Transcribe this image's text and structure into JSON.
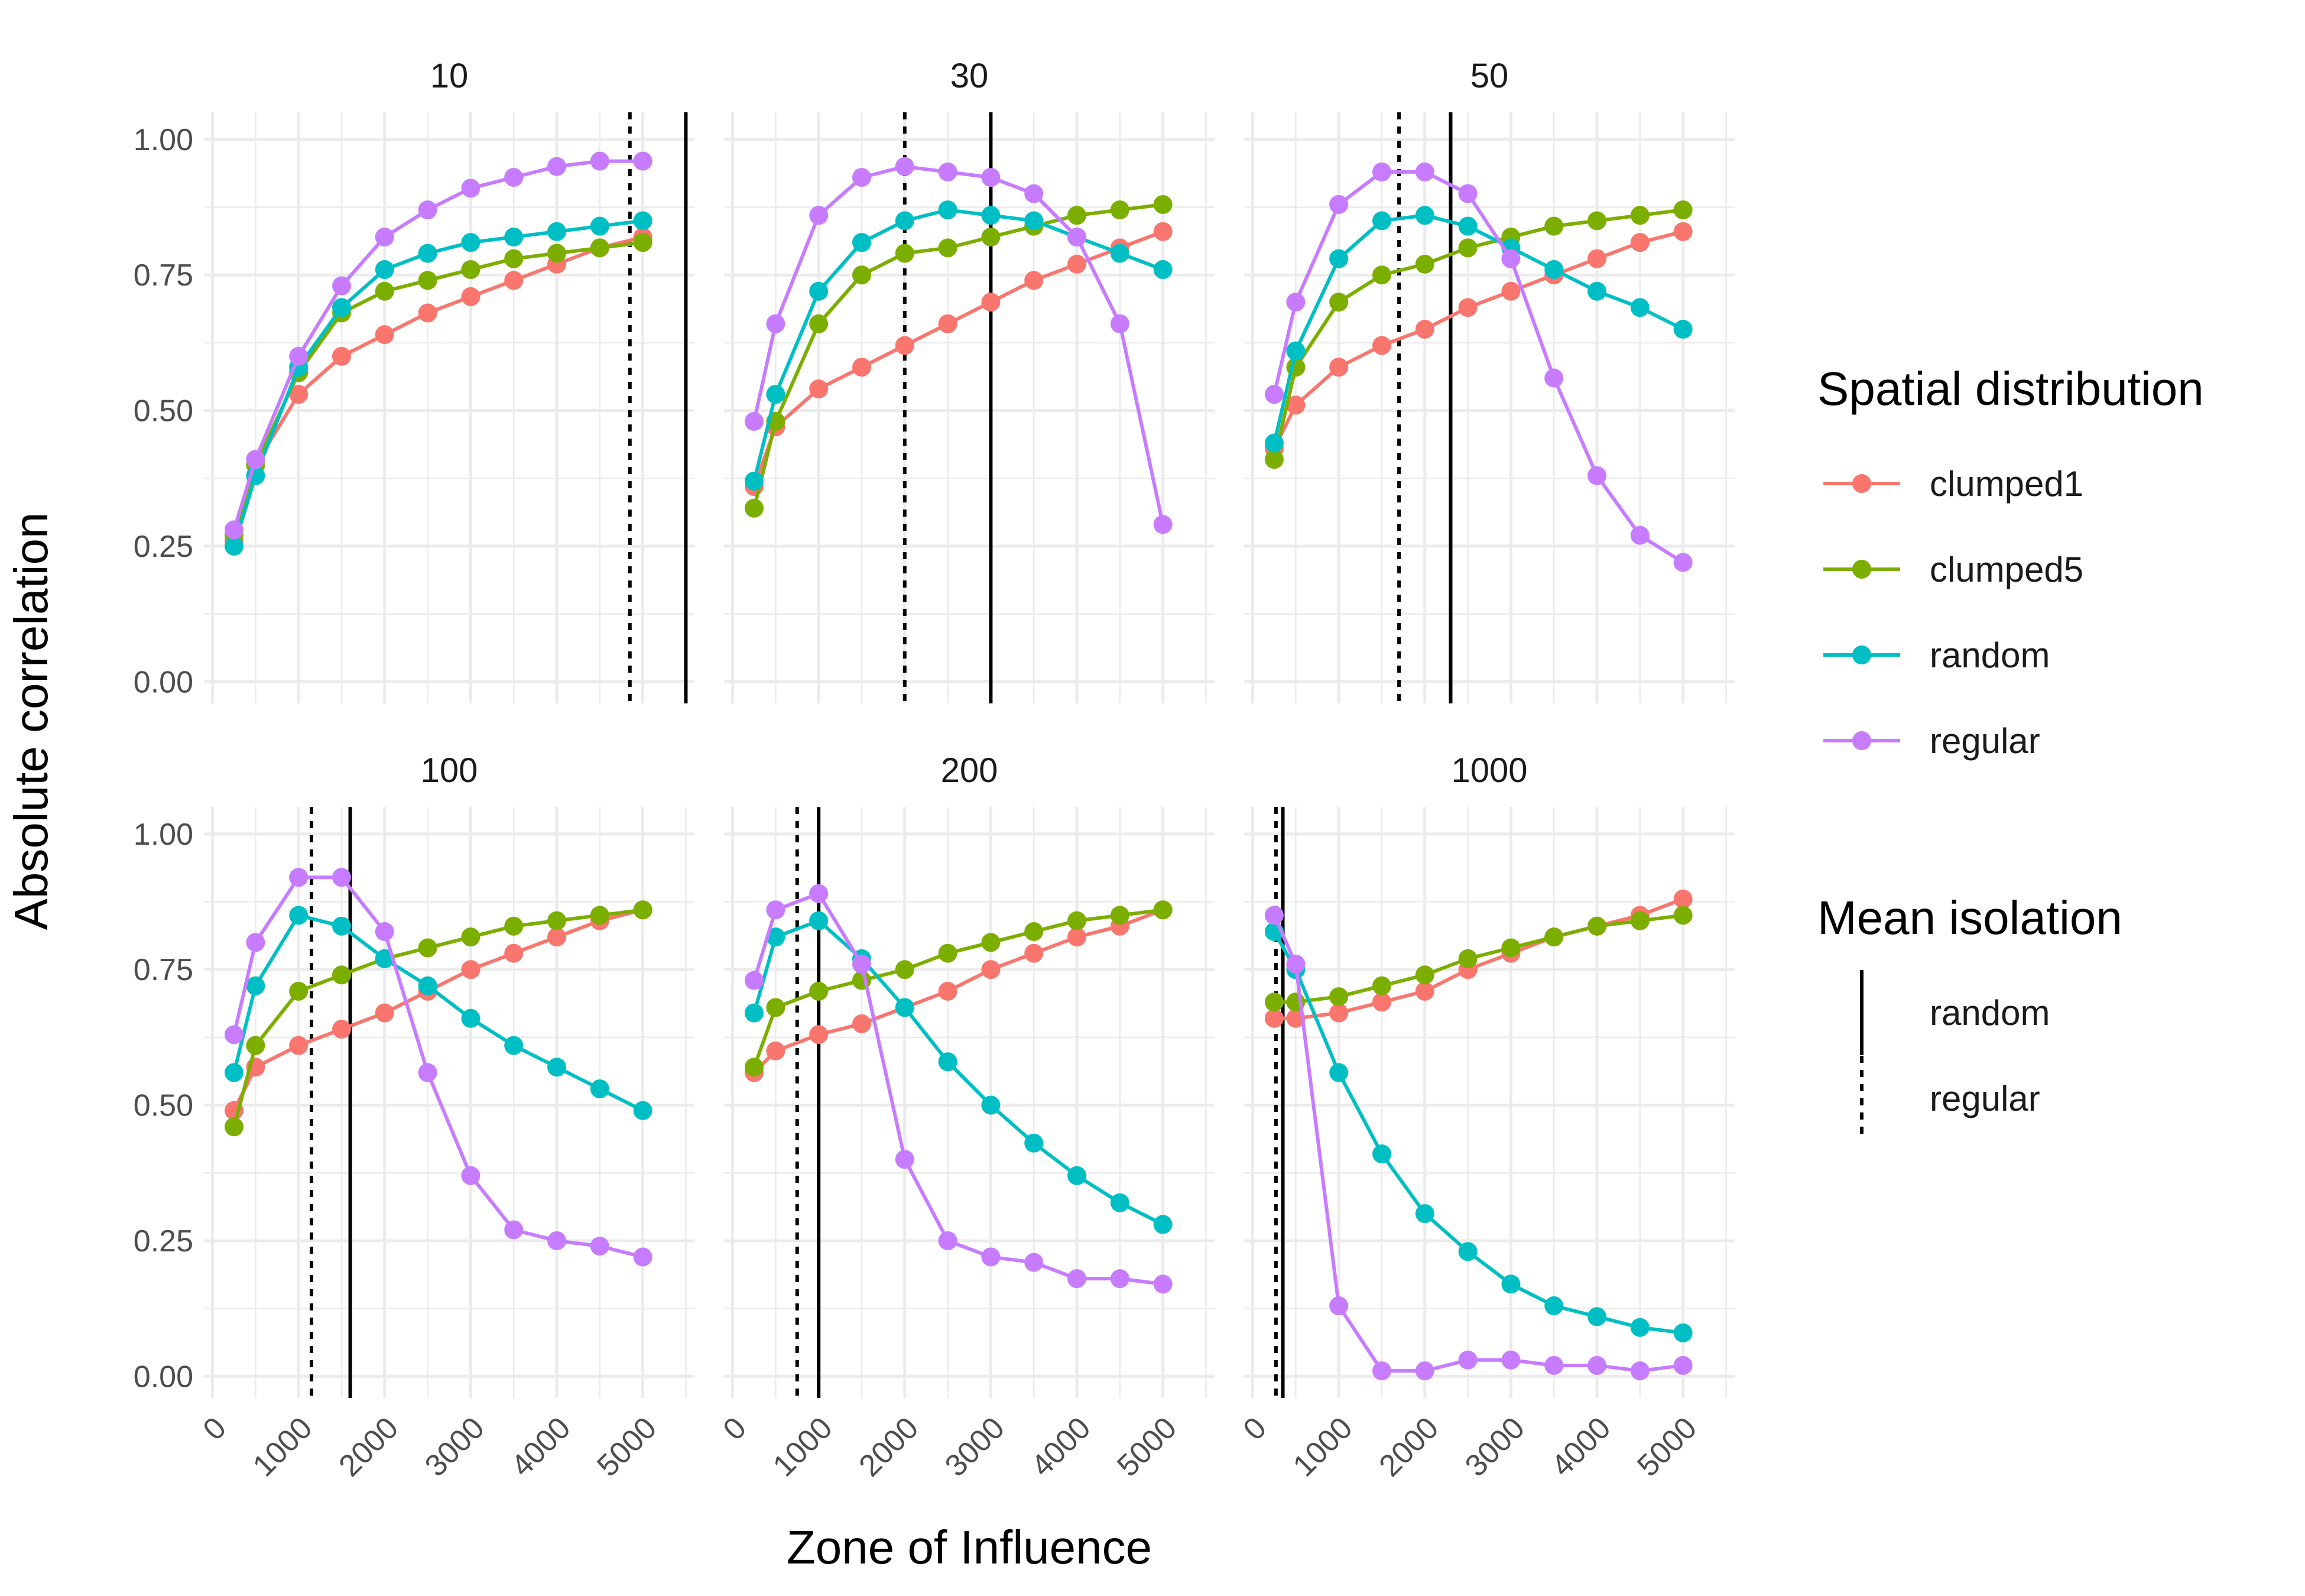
{
  "chart_data": {
    "type": "line",
    "facets": [
      "10",
      "30",
      "50",
      "100",
      "200",
      "1000"
    ],
    "x": [
      250,
      500,
      1000,
      1500,
      2000,
      2500,
      3000,
      3500,
      4000,
      4500,
      5000
    ],
    "xlabel": "Zone of Influence",
    "ylabel": "Absolute correlation",
    "xlim": [
      -100,
      5600
    ],
    "ylim": [
      -0.04,
      1.05
    ],
    "x_ticks": [
      0,
      1000,
      2000,
      3000,
      4000,
      5000
    ],
    "x_tick_labels": [
      "0",
      "1000",
      "2000",
      "3000",
      "4000",
      "5000"
    ],
    "y_ticks": [
      0,
      0.25,
      0.5,
      0.75,
      1.0
    ],
    "y_tick_labels": [
      "0.00",
      "0.25",
      "0.50",
      "0.75",
      "1.00"
    ],
    "grid": true,
    "legend_position": "right",
    "color_legend_title": "Spatial distribution",
    "linetype_legend_title": "Mean isolation",
    "colors": {
      "clumped1": "#F8766D",
      "clumped5": "#7CAE00",
      "random": "#00BFC4",
      "regular": "#C77CFF",
      "isolation_line": "#000000",
      "grid": "#EBEBEB"
    },
    "series_names": [
      "clumped1",
      "clumped5",
      "random",
      "regular"
    ],
    "linetypes": [
      {
        "name": "random",
        "dash": "solid"
      },
      {
        "name": "regular",
        "dash": "dotted"
      }
    ],
    "panels": [
      {
        "label": "10",
        "isolation": {
          "random": 5500,
          "regular": 4850
        },
        "series": {
          "clumped1": [
            0.26,
            0.4,
            0.53,
            0.6,
            0.64,
            0.68,
            0.71,
            0.74,
            0.77,
            0.8,
            0.82
          ],
          "clumped5": [
            0.27,
            0.4,
            0.57,
            0.68,
            0.72,
            0.74,
            0.76,
            0.78,
            0.79,
            0.8,
            0.81
          ],
          "random": [
            0.25,
            0.38,
            0.58,
            0.69,
            0.76,
            0.79,
            0.81,
            0.82,
            0.83,
            0.84,
            0.85
          ],
          "regular": [
            0.28,
            0.41,
            0.6,
            0.73,
            0.82,
            0.87,
            0.91,
            0.93,
            0.95,
            0.96,
            0.96
          ]
        }
      },
      {
        "label": "30",
        "isolation": {
          "random": 3000,
          "regular": 2000
        },
        "series": {
          "clumped1": [
            0.36,
            0.47,
            0.54,
            0.58,
            0.62,
            0.66,
            0.7,
            0.74,
            0.77,
            0.8,
            0.83
          ],
          "clumped5": [
            0.32,
            0.48,
            0.66,
            0.75,
            0.79,
            0.8,
            0.82,
            0.84,
            0.86,
            0.87,
            0.88
          ],
          "random": [
            0.37,
            0.53,
            0.72,
            0.81,
            0.85,
            0.87,
            0.86,
            0.85,
            0.82,
            0.79,
            0.76
          ],
          "regular": [
            0.48,
            0.66,
            0.86,
            0.93,
            0.95,
            0.94,
            0.93,
            0.9,
            0.82,
            0.66,
            0.29
          ]
        }
      },
      {
        "label": "50",
        "isolation": {
          "random": 2300,
          "regular": 1700
        },
        "series": {
          "clumped1": [
            0.43,
            0.51,
            0.58,
            0.62,
            0.65,
            0.69,
            0.72,
            0.75,
            0.78,
            0.81,
            0.83
          ],
          "clumped5": [
            0.41,
            0.58,
            0.7,
            0.75,
            0.77,
            0.8,
            0.82,
            0.84,
            0.85,
            0.86,
            0.87
          ],
          "random": [
            0.44,
            0.61,
            0.78,
            0.85,
            0.86,
            0.84,
            0.8,
            0.76,
            0.72,
            0.69,
            0.65
          ],
          "regular": [
            0.53,
            0.7,
            0.88,
            0.94,
            0.94,
            0.9,
            0.78,
            0.56,
            0.38,
            0.27,
            0.22
          ]
        }
      },
      {
        "label": "100",
        "isolation": {
          "random": 1600,
          "regular": 1150
        },
        "series": {
          "clumped1": [
            0.49,
            0.57,
            0.61,
            0.64,
            0.67,
            0.71,
            0.75,
            0.78,
            0.81,
            0.84,
            0.86
          ],
          "clumped5": [
            0.46,
            0.61,
            0.71,
            0.74,
            0.77,
            0.79,
            0.81,
            0.83,
            0.84,
            0.85,
            0.86
          ],
          "random": [
            0.56,
            0.72,
            0.85,
            0.83,
            0.77,
            0.72,
            0.66,
            0.61,
            0.57,
            0.53,
            0.49
          ],
          "regular": [
            0.63,
            0.8,
            0.92,
            0.92,
            0.82,
            0.56,
            0.37,
            0.27,
            0.25,
            0.24,
            0.22
          ]
        }
      },
      {
        "label": "200",
        "isolation": {
          "random": 1000,
          "regular": 750
        },
        "series": {
          "clumped1": [
            0.56,
            0.6,
            0.63,
            0.65,
            0.68,
            0.71,
            0.75,
            0.78,
            0.81,
            0.83,
            0.86
          ],
          "clumped5": [
            0.57,
            0.68,
            0.71,
            0.73,
            0.75,
            0.78,
            0.8,
            0.82,
            0.84,
            0.85,
            0.86
          ],
          "random": [
            0.67,
            0.81,
            0.84,
            0.77,
            0.68,
            0.58,
            0.5,
            0.43,
            0.37,
            0.32,
            0.28
          ],
          "regular": [
            0.73,
            0.86,
            0.89,
            0.76,
            0.4,
            0.25,
            0.22,
            0.21,
            0.18,
            0.18,
            0.17
          ]
        }
      },
      {
        "label": "1000",
        "isolation": {
          "random": 350,
          "regular": 270
        },
        "series": {
          "clumped1": [
            0.66,
            0.66,
            0.67,
            0.69,
            0.71,
            0.75,
            0.78,
            0.81,
            0.83,
            0.85,
            0.88
          ],
          "clumped5": [
            0.69,
            0.69,
            0.7,
            0.72,
            0.74,
            0.77,
            0.79,
            0.81,
            0.83,
            0.84,
            0.85
          ],
          "random": [
            0.82,
            0.75,
            0.56,
            0.41,
            0.3,
            0.23,
            0.17,
            0.13,
            0.11,
            0.09,
            0.08
          ],
          "regular": [
            0.85,
            0.76,
            0.13,
            0.01,
            0.01,
            0.03,
            0.03,
            0.02,
            0.02,
            0.01,
            0.02
          ]
        }
      }
    ]
  }
}
